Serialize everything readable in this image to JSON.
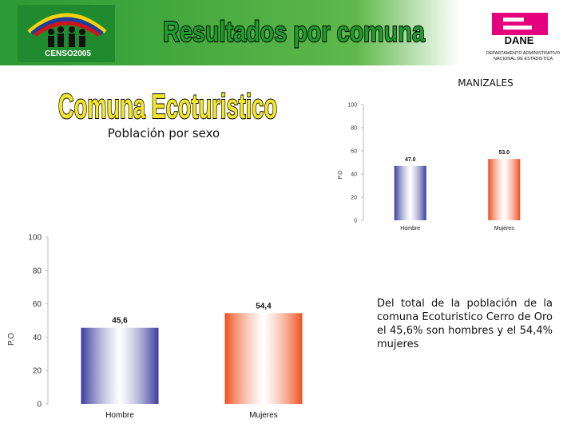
{
  "header": {
    "title": "Resultados por comuna",
    "logo_text": "CENSO2005",
    "dane": "DANE",
    "dane_line1": "DEPARTAMENTO ADMINISTRATIVO",
    "dane_line2": "NACIONAL DE ESTADISTICA"
  },
  "subtitle": "Comuna Ecoturistico",
  "chart_data": [
    {
      "type": "bar",
      "title": "MANIZALES",
      "ylabel": "P.O",
      "categories": [
        "Hombre",
        "Mujeres"
      ],
      "values": [
        47.0,
        53.0
      ],
      "value_labels": [
        "47.0",
        "53.0"
      ],
      "colors": [
        "#3c3c9c",
        "#f0501e"
      ],
      "ylim": [
        0,
        100
      ],
      "yticks": [
        0,
        20,
        40,
        60,
        80,
        100
      ]
    },
    {
      "type": "bar",
      "title": "Población por sexo",
      "ylabel": "P.O",
      "categories": [
        "Hombre",
        "Mujeres"
      ],
      "values": [
        45.6,
        54.4
      ],
      "value_labels": [
        "45,6",
        "54,4"
      ],
      "colors": [
        "#3c3c9c",
        "#f0501e"
      ],
      "ylim": [
        0,
        100
      ],
      "yticks": [
        0,
        20,
        40,
        60,
        80,
        100
      ]
    }
  ],
  "text": "Del total de la población de la comuna Ecoturistico Cerro de Oro el 45,6% son hombres y el 54,4% mujeres"
}
